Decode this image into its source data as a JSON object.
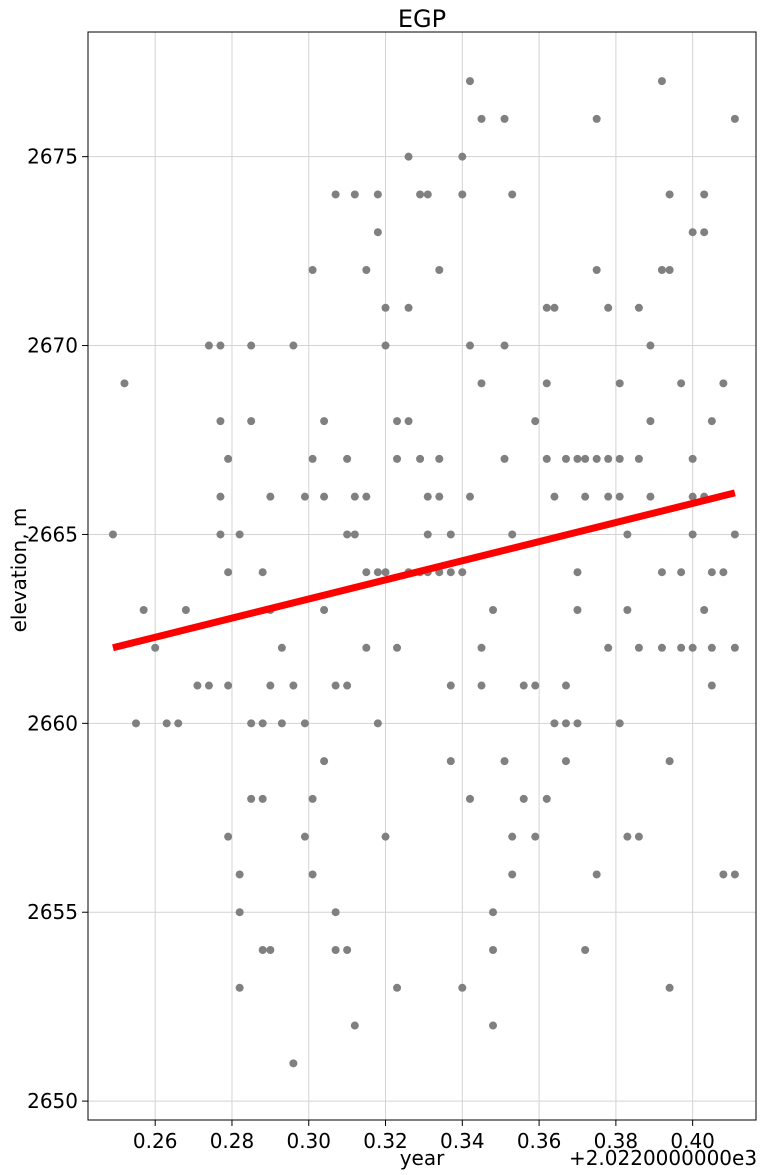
{
  "chart_data": {
    "type": "scatter",
    "title": "EGP",
    "xlabel": "year",
    "ylabel": "elevation, m",
    "x_offset_label": "+2.0220000000e3",
    "xlim": [
      0.2425,
      0.4165
    ],
    "ylim": [
      2649.5,
      2678.3
    ],
    "xticks": [
      0.26,
      0.28,
      0.3,
      0.32,
      0.34,
      0.36,
      0.38,
      0.4
    ],
    "xtick_labels": [
      "0.26",
      "0.28",
      "0.30",
      "0.32",
      "0.34",
      "0.36",
      "0.38",
      "0.40"
    ],
    "yticks": [
      2650,
      2655,
      2660,
      2665,
      2670,
      2675
    ],
    "ytick_labels": [
      "2650",
      "2655",
      "2660",
      "2665",
      "2670",
      "2675"
    ],
    "grid": true,
    "marker_color": "#808080",
    "trend_color": "#ff0000",
    "trend_line": {
      "x": [
        0.249,
        0.411
      ],
      "y": [
        2662.0,
        2666.1
      ]
    },
    "points": [
      [
        0.249,
        2665
      ],
      [
        0.252,
        2669
      ],
      [
        0.255,
        2660
      ],
      [
        0.257,
        2663
      ],
      [
        0.26,
        2662
      ],
      [
        0.263,
        2660
      ],
      [
        0.266,
        2660
      ],
      [
        0.268,
        2663
      ],
      [
        0.271,
        2661
      ],
      [
        0.274,
        2661
      ],
      [
        0.274,
        2670
      ],
      [
        0.277,
        2670
      ],
      [
        0.277,
        2668
      ],
      [
        0.277,
        2666
      ],
      [
        0.277,
        2665
      ],
      [
        0.279,
        2667
      ],
      [
        0.279,
        2664
      ],
      [
        0.279,
        2661
      ],
      [
        0.279,
        2657
      ],
      [
        0.282,
        2665
      ],
      [
        0.282,
        2656
      ],
      [
        0.282,
        2655
      ],
      [
        0.282,
        2653
      ],
      [
        0.285,
        2670
      ],
      [
        0.285,
        2668
      ],
      [
        0.285,
        2660
      ],
      [
        0.285,
        2658
      ],
      [
        0.288,
        2664
      ],
      [
        0.288,
        2660
      ],
      [
        0.288,
        2658
      ],
      [
        0.288,
        2654
      ],
      [
        0.29,
        2666
      ],
      [
        0.29,
        2663
      ],
      [
        0.29,
        2661
      ],
      [
        0.29,
        2654
      ],
      [
        0.293,
        2662
      ],
      [
        0.293,
        2660
      ],
      [
        0.296,
        2670
      ],
      [
        0.296,
        2661
      ],
      [
        0.296,
        2651
      ],
      [
        0.299,
        2666
      ],
      [
        0.299,
        2660
      ],
      [
        0.299,
        2657
      ],
      [
        0.301,
        2672
      ],
      [
        0.301,
        2667
      ],
      [
        0.301,
        2658
      ],
      [
        0.301,
        2656
      ],
      [
        0.304,
        2668
      ],
      [
        0.304,
        2666
      ],
      [
        0.304,
        2663
      ],
      [
        0.304,
        2659
      ],
      [
        0.307,
        2674
      ],
      [
        0.307,
        2661
      ],
      [
        0.307,
        2655
      ],
      [
        0.307,
        2654
      ],
      [
        0.31,
        2667
      ],
      [
        0.31,
        2665
      ],
      [
        0.31,
        2661
      ],
      [
        0.31,
        2654
      ],
      [
        0.312,
        2674
      ],
      [
        0.312,
        2666
      ],
      [
        0.312,
        2665
      ],
      [
        0.312,
        2652
      ],
      [
        0.315,
        2672
      ],
      [
        0.315,
        2666
      ],
      [
        0.315,
        2664
      ],
      [
        0.315,
        2662
      ],
      [
        0.318,
        2674
      ],
      [
        0.318,
        2673
      ],
      [
        0.318,
        2664
      ],
      [
        0.318,
        2660
      ],
      [
        0.32,
        2671
      ],
      [
        0.32,
        2670
      ],
      [
        0.32,
        2664
      ],
      [
        0.32,
        2657
      ],
      [
        0.323,
        2668
      ],
      [
        0.323,
        2667
      ],
      [
        0.323,
        2662
      ],
      [
        0.323,
        2653
      ],
      [
        0.326,
        2675
      ],
      [
        0.326,
        2671
      ],
      [
        0.326,
        2668
      ],
      [
        0.326,
        2664
      ],
      [
        0.329,
        2674
      ],
      [
        0.329,
        2667
      ],
      [
        0.329,
        2664
      ],
      [
        0.331,
        2674
      ],
      [
        0.331,
        2666
      ],
      [
        0.331,
        2665
      ],
      [
        0.331,
        2664
      ],
      [
        0.334,
        2672
      ],
      [
        0.334,
        2667
      ],
      [
        0.334,
        2666
      ],
      [
        0.334,
        2664
      ],
      [
        0.337,
        2665
      ],
      [
        0.337,
        2664
      ],
      [
        0.337,
        2661
      ],
      [
        0.337,
        2659
      ],
      [
        0.34,
        2675
      ],
      [
        0.34,
        2674
      ],
      [
        0.34,
        2664
      ],
      [
        0.34,
        2653
      ],
      [
        0.342,
        2677
      ],
      [
        0.342,
        2670
      ],
      [
        0.342,
        2666
      ],
      [
        0.342,
        2658
      ],
      [
        0.345,
        2676
      ],
      [
        0.345,
        2669
      ],
      [
        0.345,
        2662
      ],
      [
        0.345,
        2661
      ],
      [
        0.348,
        2663
      ],
      [
        0.348,
        2655
      ],
      [
        0.348,
        2654
      ],
      [
        0.348,
        2652
      ],
      [
        0.351,
        2676
      ],
      [
        0.351,
        2670
      ],
      [
        0.351,
        2667
      ],
      [
        0.351,
        2659
      ],
      [
        0.353,
        2674
      ],
      [
        0.353,
        2665
      ],
      [
        0.353,
        2657
      ],
      [
        0.353,
        2656
      ],
      [
        0.356,
        2661
      ],
      [
        0.356,
        2658
      ],
      [
        0.359,
        2668
      ],
      [
        0.359,
        2661
      ],
      [
        0.359,
        2657
      ],
      [
        0.362,
        2671
      ],
      [
        0.362,
        2669
      ],
      [
        0.362,
        2667
      ],
      [
        0.362,
        2658
      ],
      [
        0.364,
        2671
      ],
      [
        0.364,
        2666
      ],
      [
        0.364,
        2660
      ],
      [
        0.367,
        2667
      ],
      [
        0.367,
        2661
      ],
      [
        0.367,
        2660
      ],
      [
        0.367,
        2659
      ],
      [
        0.37,
        2667
      ],
      [
        0.37,
        2664
      ],
      [
        0.37,
        2663
      ],
      [
        0.37,
        2660
      ],
      [
        0.372,
        2667
      ],
      [
        0.372,
        2666
      ],
      [
        0.372,
        2654
      ],
      [
        0.375,
        2676
      ],
      [
        0.375,
        2672
      ],
      [
        0.375,
        2667
      ],
      [
        0.375,
        2656
      ],
      [
        0.378,
        2671
      ],
      [
        0.378,
        2667
      ],
      [
        0.378,
        2666
      ],
      [
        0.378,
        2662
      ],
      [
        0.381,
        2669
      ],
      [
        0.381,
        2667
      ],
      [
        0.381,
        2666
      ],
      [
        0.381,
        2660
      ],
      [
        0.383,
        2665
      ],
      [
        0.383,
        2663
      ],
      [
        0.383,
        2657
      ],
      [
        0.386,
        2671
      ],
      [
        0.386,
        2667
      ],
      [
        0.386,
        2662
      ],
      [
        0.386,
        2657
      ],
      [
        0.389,
        2670
      ],
      [
        0.389,
        2668
      ],
      [
        0.389,
        2666
      ],
      [
        0.392,
        2677
      ],
      [
        0.392,
        2672
      ],
      [
        0.392,
        2664
      ],
      [
        0.392,
        2662
      ],
      [
        0.394,
        2674
      ],
      [
        0.394,
        2672
      ],
      [
        0.394,
        2659
      ],
      [
        0.394,
        2653
      ],
      [
        0.397,
        2669
      ],
      [
        0.397,
        2664
      ],
      [
        0.397,
        2662
      ],
      [
        0.4,
        2673
      ],
      [
        0.4,
        2667
      ],
      [
        0.4,
        2666
      ],
      [
        0.4,
        2665
      ],
      [
        0.4,
        2662
      ],
      [
        0.403,
        2674
      ],
      [
        0.403,
        2673
      ],
      [
        0.403,
        2666
      ],
      [
        0.403,
        2663
      ],
      [
        0.405,
        2668
      ],
      [
        0.405,
        2664
      ],
      [
        0.405,
        2662
      ],
      [
        0.405,
        2661
      ],
      [
        0.408,
        2669
      ],
      [
        0.408,
        2664
      ],
      [
        0.408,
        2656
      ],
      [
        0.411,
        2676
      ],
      [
        0.411,
        2665
      ],
      [
        0.411,
        2662
      ],
      [
        0.411,
        2656
      ]
    ]
  }
}
